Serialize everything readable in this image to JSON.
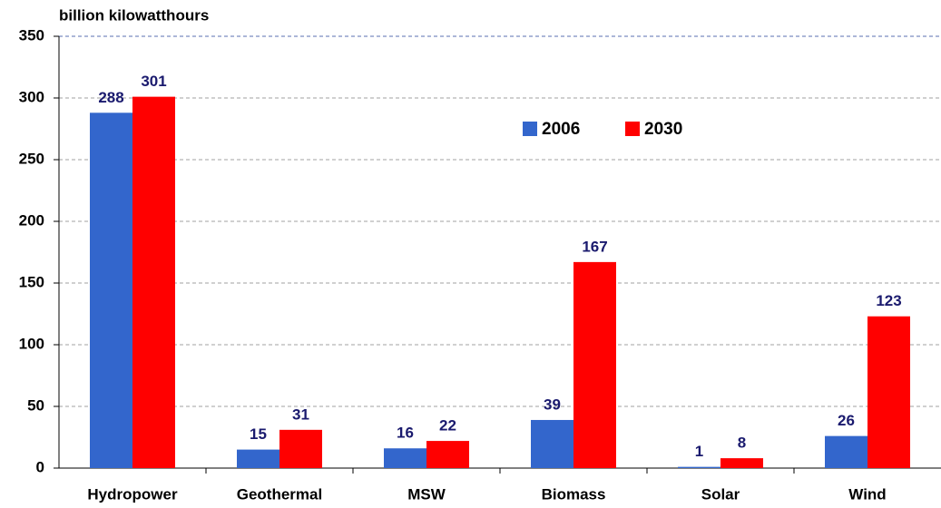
{
  "chart_data": {
    "type": "bar",
    "y_label": "billion kilowatthours",
    "categories": [
      "Hydropower",
      "Geothermal",
      "MSW",
      "Biomass",
      "Solar",
      "Wind"
    ],
    "series": [
      {
        "name": "2006",
        "color": "#3366cc",
        "values": [
          288,
          15,
          16,
          39,
          1,
          26
        ]
      },
      {
        "name": "2030",
        "color": "#ff0000",
        "values": [
          301,
          31,
          22,
          167,
          8,
          123
        ]
      }
    ],
    "ylim": [
      0,
      350
    ],
    "yticks": [
      0,
      50,
      100,
      150,
      200,
      250,
      300,
      350
    ],
    "grid": true,
    "legend": "top-center"
  }
}
